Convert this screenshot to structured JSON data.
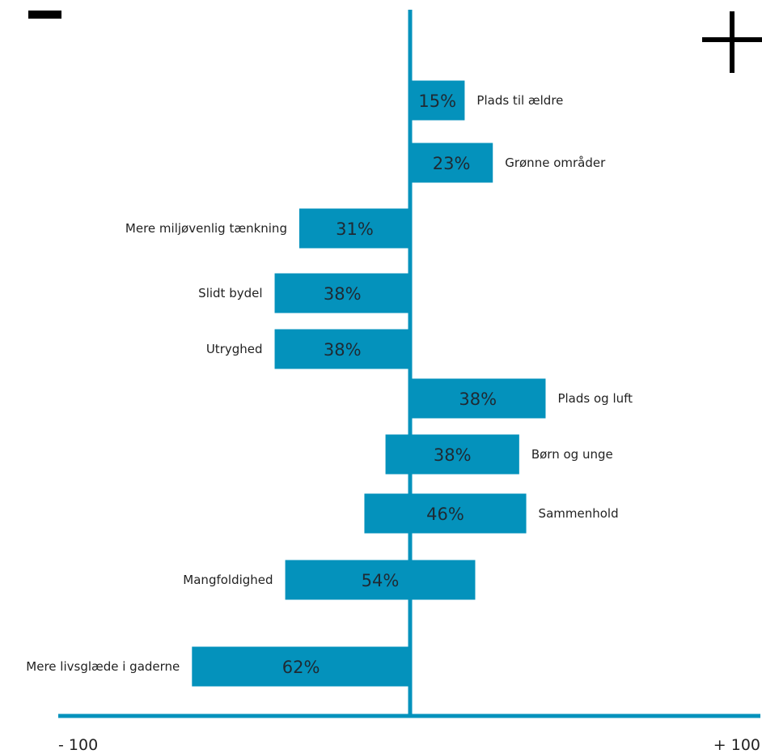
{
  "chart_data": {
    "type": "bar",
    "orientation": "horizontal",
    "categories": [
      "Plads til ældre",
      "Grønne områder",
      "Mere miljøvenlig tænkning",
      "Slidt bydel",
      "Utryghed",
      "Plads og luft",
      "Børn og unge",
      "Sammenhold",
      "Mangfoldighed",
      "Mere livsglæde i gaderne"
    ],
    "value_labels": [
      "15%",
      "23%",
      "31%",
      "38%",
      "38%",
      "38%",
      "38%",
      "46%",
      "54%",
      "62%"
    ],
    "bars": [
      {
        "start": 0,
        "end": 15.5
      },
      {
        "start": 0,
        "end": 23.5
      },
      {
        "start": -31.5,
        "end": 0
      },
      {
        "start": -38.5,
        "end": 0
      },
      {
        "start": -38.5,
        "end": 0
      },
      {
        "start": 0,
        "end": 38.5
      },
      {
        "start": -7,
        "end": 31
      },
      {
        "start": -13,
        "end": 33
      },
      {
        "start": -35.5,
        "end": 18.5
      },
      {
        "start": -62,
        "end": 0
      }
    ],
    "xlim": [
      -100,
      100
    ],
    "x_tick_labels": [
      "- 100",
      "+ 100"
    ],
    "negative_symbol": "−",
    "positive_symbol": "+",
    "grid": false,
    "colors": {
      "bar": "#0492bc",
      "axis": "#0492bc",
      "symbol": "#000000"
    }
  }
}
